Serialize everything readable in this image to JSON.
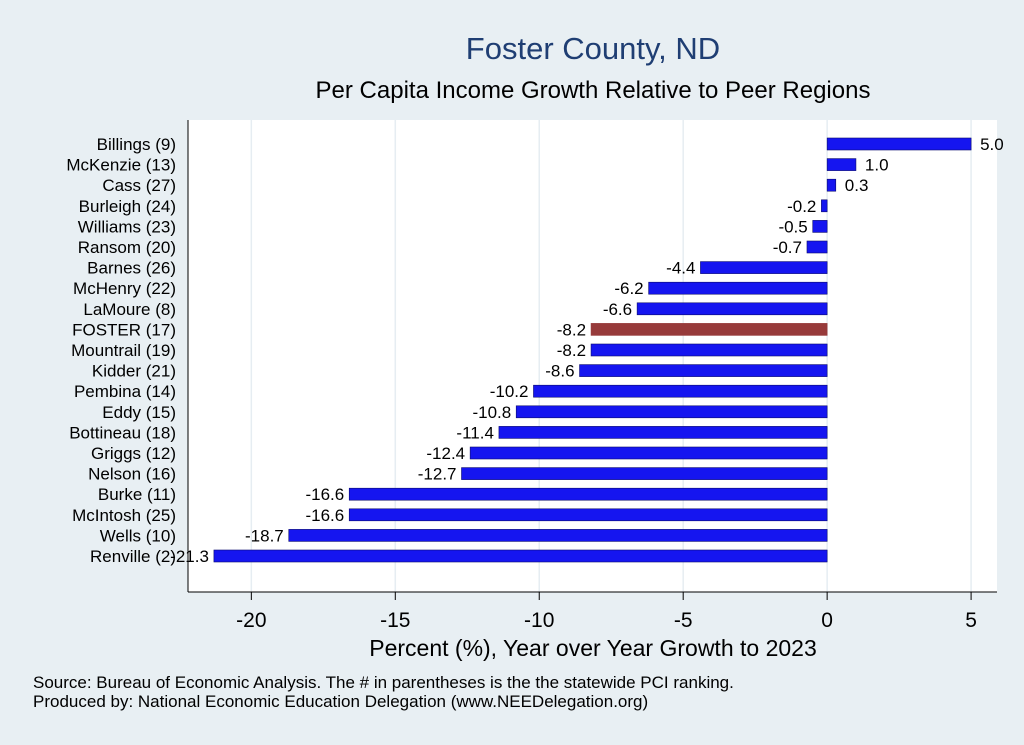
{
  "colors": {
    "background": "#e8eff3",
    "plot_background": "#ffffff",
    "bar": "#1515f0",
    "highlight_bar": "#973a3a",
    "title": "#1f3e73",
    "grid": "#e6edf2"
  },
  "chart_data": {
    "type": "bar",
    "orientation": "horizontal",
    "title": "Foster County, ND",
    "subtitle": "Per Capita Income Growth Relative to Peer Regions",
    "xlabel": "Percent (%), Year over Year Growth to 2023",
    "ylabel": "",
    "xlim": [
      -22.2,
      5.9
    ],
    "xticks": [
      -20,
      -15,
      -10,
      -5,
      0,
      5
    ],
    "xtick_labels": [
      "-20",
      "-15",
      "-10",
      "-5",
      "0",
      "5"
    ],
    "grid": true,
    "highlight_category": "FOSTER (17)",
    "categories": [
      "Billings  (9)",
      "McKenzie (13)",
      "Cass (27)",
      "Burleigh (24)",
      "Williams (23)",
      "Ransom (20)",
      "Barnes (26)",
      "McHenry (22)",
      "LaMoure  (8)",
      "FOSTER (17)",
      "Mountrail (19)",
      "Kidder (21)",
      "Pembina (14)",
      "Eddy (15)",
      "Bottineau (18)",
      "Griggs (12)",
      "Nelson (16)",
      "Burke (11)",
      "McIntosh (25)",
      "Wells (10)",
      "Renville  (2)"
    ],
    "values": [
      5.0,
      1.0,
      0.3,
      -0.2,
      -0.5,
      -0.7,
      -4.4,
      -6.2,
      -6.6,
      -8.2,
      -8.2,
      -8.6,
      -10.2,
      -10.8,
      -11.4,
      -12.4,
      -12.7,
      -16.6,
      -16.6,
      -18.7,
      -21.3
    ],
    "value_labels": [
      "5.0",
      "1.0",
      "0.3",
      "-0.2",
      "-0.5",
      "-0.7",
      "-4.4",
      "-6.2",
      "-6.6",
      "-8.2",
      "-8.2",
      "-8.6",
      "-10.2",
      "-10.8",
      "-11.4",
      "-12.4",
      "-12.7",
      "-16.6",
      "-16.6",
      "-18.7",
      "-21.3"
    ]
  },
  "footer": {
    "source": "Source: Bureau of Economic Analysis. The # in parentheses is the the statewide PCI ranking.",
    "producer": "Produced by: National Economic Education Delegation (www.NEEDelegation.org)"
  }
}
